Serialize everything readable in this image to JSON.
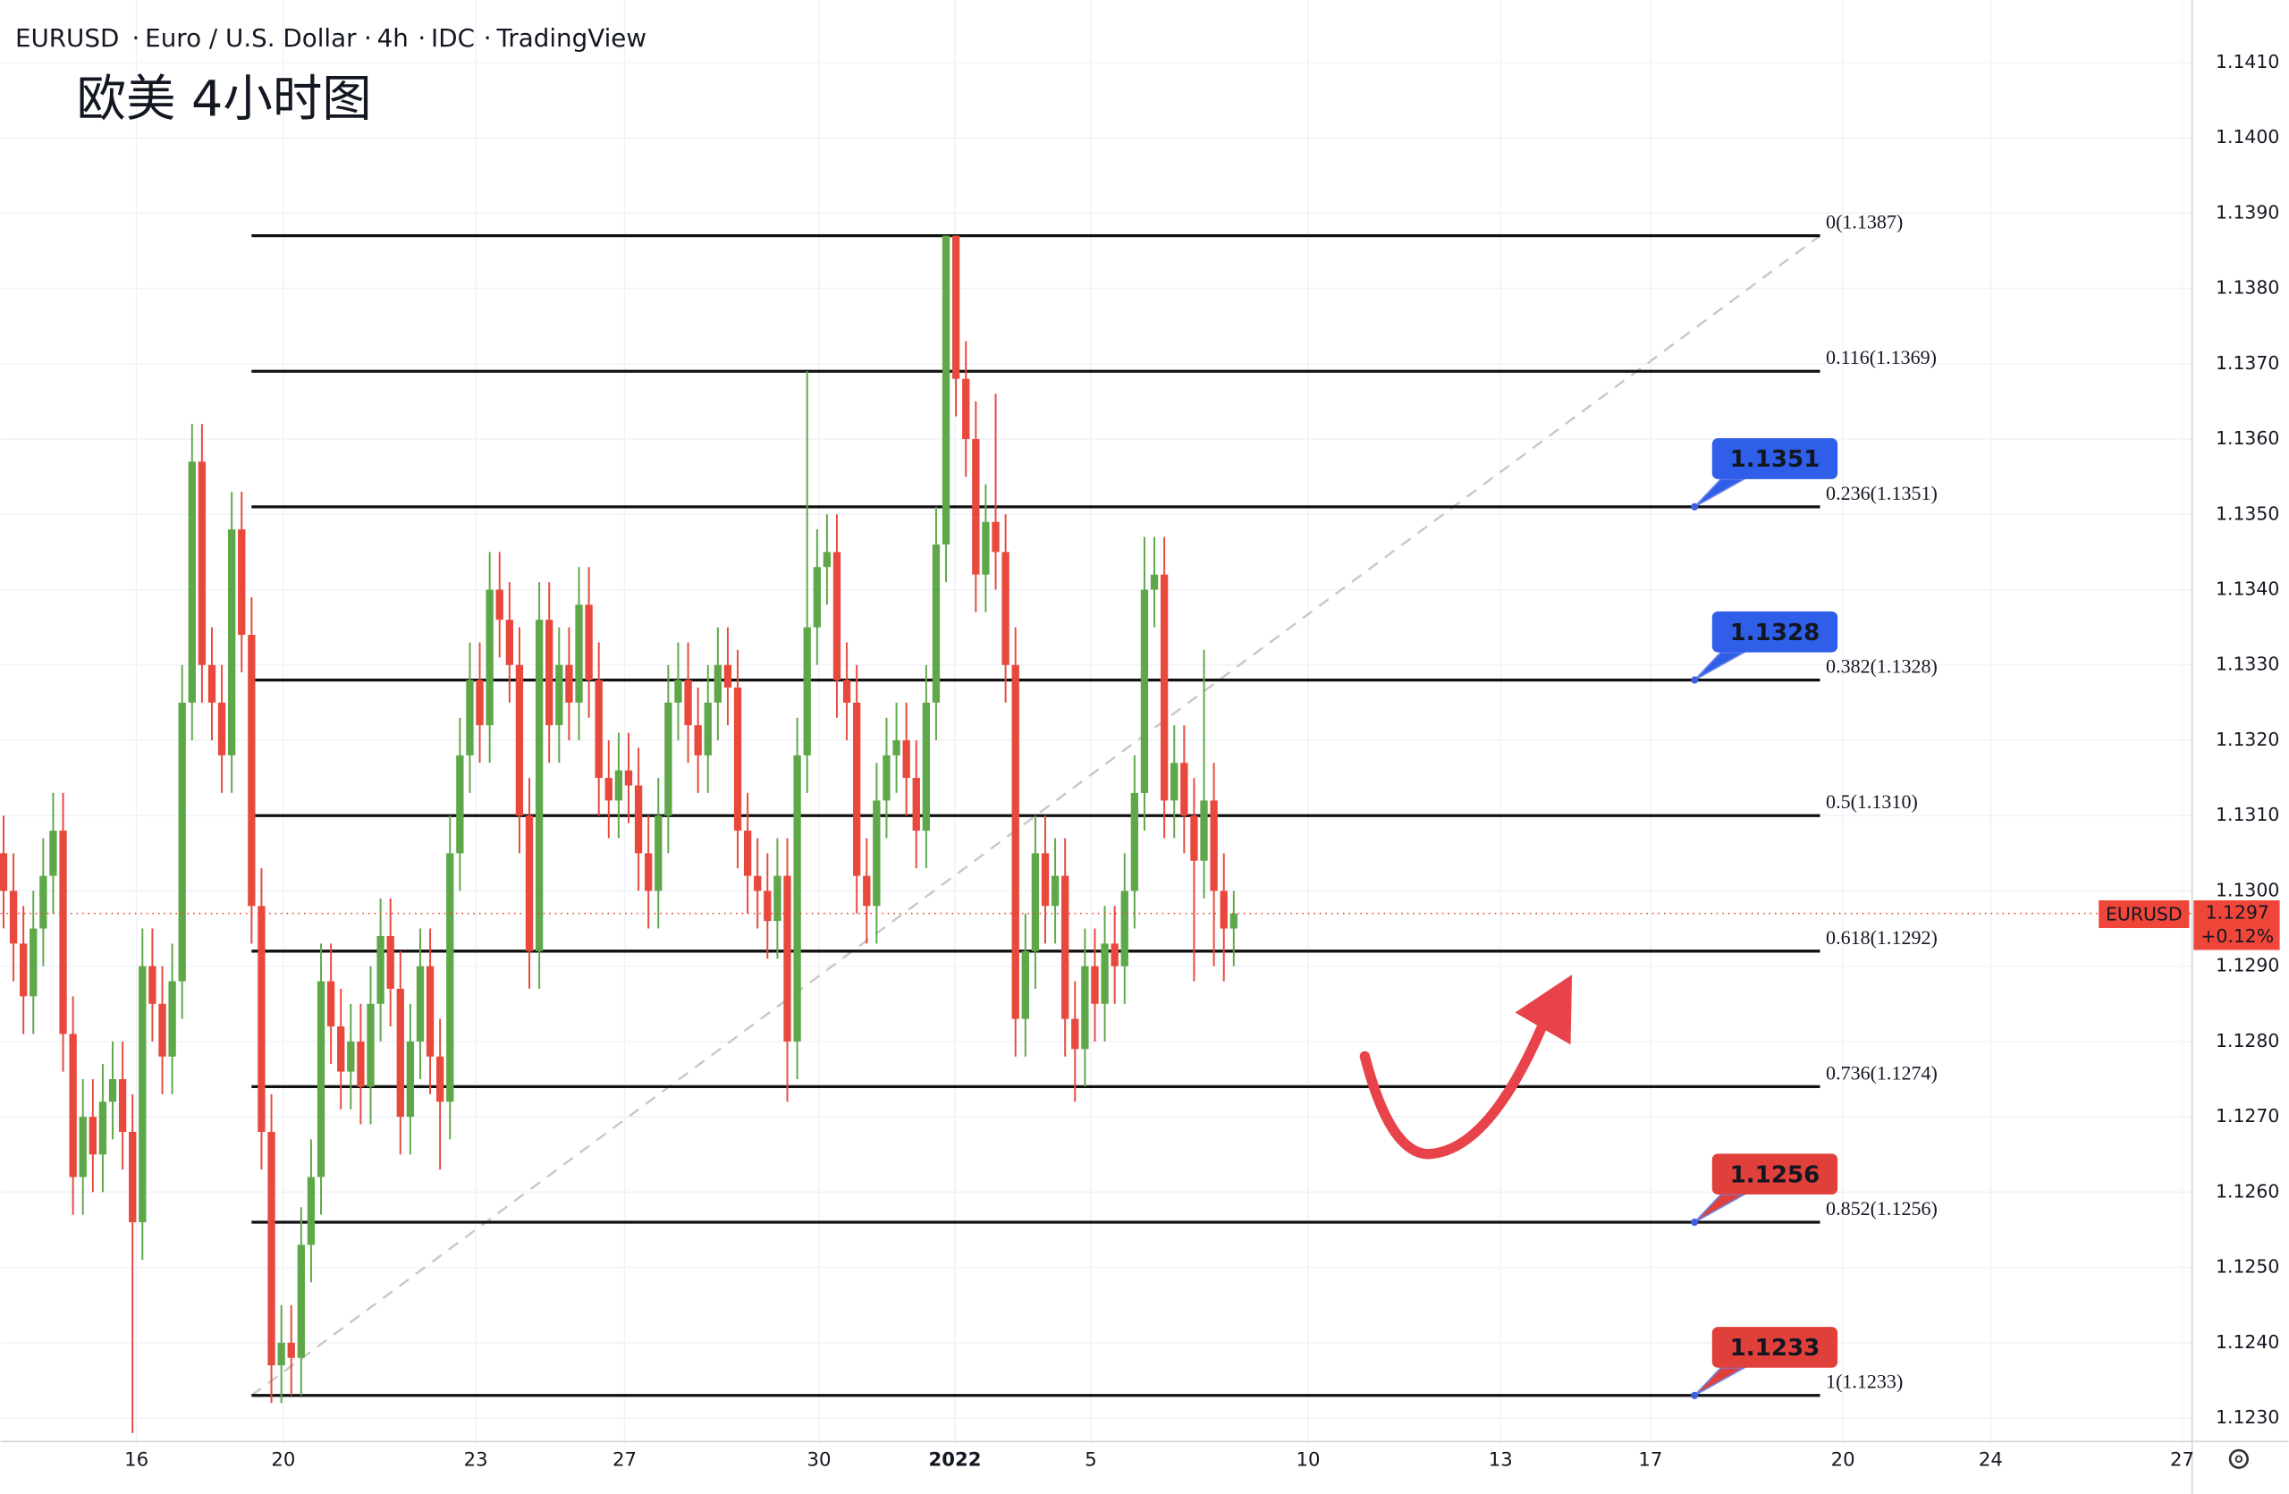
{
  "chart_data": {
    "type": "candlestick",
    "header": {
      "symbol": "EURUSD",
      "name": "Euro / U.S. Dollar",
      "interval": "4h",
      "source": "IDC",
      "platform": "TradingView"
    },
    "title": "欧美 4小时图",
    "up_color": "#5ea84a",
    "down_color": "#e8493c",
    "open": [
      1.1305,
      1.13,
      1.1293,
      1.1286,
      1.1295,
      1.1302,
      1.1308,
      1.1281,
      1.1262,
      1.127,
      1.1265,
      1.1272,
      1.1275,
      1.1268,
      1.1256,
      1.129,
      1.1285,
      1.1278,
      1.1288,
      1.1325,
      1.1357,
      1.133,
      1.1325,
      1.1318,
      1.1348,
      1.1334,
      1.1298,
      1.1268,
      1.1237,
      1.124,
      1.1238,
      1.1253,
      1.1262,
      1.1288,
      1.1282,
      1.1276,
      1.128,
      1.1274,
      1.1285,
      1.1294,
      1.1287,
      1.127,
      1.128,
      1.129,
      1.1278,
      1.1272,
      1.1305,
      1.1318,
      1.1328,
      1.1322,
      1.134,
      1.1336,
      1.133,
      1.131,
      1.1292,
      1.1336,
      1.1322,
      1.133,
      1.1325,
      1.1338,
      1.1328,
      1.1315,
      1.1312,
      1.1316,
      1.1314,
      1.1305,
      1.13,
      1.131,
      1.1325,
      1.1328,
      1.1322,
      1.1318,
      1.1325,
      1.133,
      1.1327,
      1.1308,
      1.1302,
      1.13,
      1.1296,
      1.1302,
      1.128,
      1.1318,
      1.1335,
      1.1343,
      1.1345,
      1.1328,
      1.1325,
      1.1302,
      1.1298,
      1.1312,
      1.1318,
      1.132,
      1.1315,
      1.1308,
      1.1325,
      1.1346,
      1.1387,
      1.1368,
      1.136,
      1.1342,
      1.1349,
      1.1345,
      1.133,
      1.1283,
      1.1292,
      1.1305,
      1.1298,
      1.1302,
      1.1283,
      1.1279,
      1.129,
      1.1285,
      1.1293,
      1.129,
      1.13,
      1.1313,
      1.134,
      1.1342,
      1.1312,
      1.1317,
      1.131,
      1.1304,
      1.1312,
      1.13,
      1.1295
    ],
    "high": [
      1.131,
      1.1305,
      1.1298,
      1.13,
      1.1307,
      1.1313,
      1.1313,
      1.1286,
      1.1275,
      1.1275,
      1.1277,
      1.128,
      1.128,
      1.1273,
      1.1295,
      1.1295,
      1.129,
      1.1293,
      1.133,
      1.1362,
      1.1362,
      1.1335,
      1.133,
      1.1353,
      1.1353,
      1.1339,
      1.1303,
      1.1273,
      1.1245,
      1.1245,
      1.1258,
      1.1267,
      1.1293,
      1.1293,
      1.1287,
      1.1285,
      1.1285,
      1.129,
      1.1299,
      1.1299,
      1.1292,
      1.1285,
      1.1295,
      1.1295,
      1.1283,
      1.131,
      1.1323,
      1.1333,
      1.1333,
      1.1345,
      1.1345,
      1.1341,
      1.1335,
      1.1315,
      1.1341,
      1.1341,
      1.1335,
      1.1335,
      1.1343,
      1.1343,
      1.1333,
      1.132,
      1.1321,
      1.1321,
      1.1319,
      1.131,
      1.1315,
      1.133,
      1.1333,
      1.1333,
      1.1327,
      1.133,
      1.1335,
      1.1335,
      1.1332,
      1.1313,
      1.1307,
      1.1305,
      1.1307,
      1.1307,
      1.1323,
      1.1369,
      1.1348,
      1.135,
      1.135,
      1.1333,
      1.133,
      1.1307,
      1.1317,
      1.1323,
      1.1325,
      1.1325,
      1.132,
      1.133,
      1.1351,
      1.1387,
      1.1387,
      1.1373,
      1.1365,
      1.1354,
      1.1366,
      1.135,
      1.1335,
      1.1297,
      1.131,
      1.131,
      1.1307,
      1.1307,
      1.1288,
      1.1295,
      1.1295,
      1.1298,
      1.1298,
      1.1305,
      1.1318,
      1.1347,
      1.1347,
      1.1347,
      1.1322,
      1.1322,
      1.1315,
      1.1332,
      1.1317,
      1.1305,
      1.13
    ],
    "low": [
      1.1295,
      1.1288,
      1.1281,
      1.1281,
      1.129,
      1.1297,
      1.1276,
      1.1257,
      1.1257,
      1.126,
      1.126,
      1.1267,
      1.1263,
      1.1228,
      1.1251,
      1.128,
      1.1273,
      1.1273,
      1.1283,
      1.132,
      1.1325,
      1.132,
      1.1313,
      1.1313,
      1.1329,
      1.1293,
      1.1263,
      1.1232,
      1.1232,
      1.1233,
      1.1233,
      1.1248,
      1.1257,
      1.1277,
      1.1271,
      1.1271,
      1.1269,
      1.1269,
      1.128,
      1.1282,
      1.1265,
      1.1265,
      1.1275,
      1.1273,
      1.1263,
      1.1267,
      1.13,
      1.1313,
      1.1317,
      1.1317,
      1.1331,
      1.1325,
      1.1305,
      1.1287,
      1.1287,
      1.1317,
      1.1317,
      1.132,
      1.132,
      1.1323,
      1.131,
      1.1307,
      1.1307,
      1.1309,
      1.13,
      1.1295,
      1.1295,
      1.1305,
      1.132,
      1.1317,
      1.1313,
      1.1313,
      1.132,
      1.1322,
      1.1303,
      1.1297,
      1.1295,
      1.1291,
      1.1291,
      1.1272,
      1.1275,
      1.1313,
      1.133,
      1.1338,
      1.1323,
      1.132,
      1.1297,
      1.1293,
      1.1293,
      1.1307,
      1.1313,
      1.131,
      1.1303,
      1.1303,
      1.132,
      1.1341,
      1.1363,
      1.1355,
      1.1337,
      1.1337,
      1.134,
      1.1325,
      1.1278,
      1.1278,
      1.1287,
      1.1293,
      1.1293,
      1.1278,
      1.1272,
      1.1274,
      1.128,
      1.128,
      1.1285,
      1.1285,
      1.1295,
      1.1308,
      1.1335,
      1.1307,
      1.1307,
      1.1305,
      1.1288,
      1.1299,
      1.129,
      1.1288,
      1.129
    ],
    "close": [
      1.13,
      1.1293,
      1.1286,
      1.1295,
      1.1302,
      1.1308,
      1.1281,
      1.1262,
      1.127,
      1.1265,
      1.1272,
      1.1275,
      1.1268,
      1.1256,
      1.129,
      1.1285,
      1.1278,
      1.1288,
      1.1325,
      1.1357,
      1.133,
      1.1325,
      1.1318,
      1.1348,
      1.1334,
      1.1298,
      1.1268,
      1.1237,
      1.124,
      1.1238,
      1.1253,
      1.1262,
      1.1288,
      1.1282,
      1.1276,
      1.128,
      1.1274,
      1.1285,
      1.1294,
      1.1287,
      1.127,
      1.128,
      1.129,
      1.1278,
      1.1272,
      1.1305,
      1.1318,
      1.1328,
      1.1322,
      1.134,
      1.1336,
      1.133,
      1.131,
      1.1292,
      1.1336,
      1.1322,
      1.133,
      1.1325,
      1.1338,
      1.1328,
      1.1315,
      1.1312,
      1.1316,
      1.1314,
      1.1305,
      1.13,
      1.131,
      1.1325,
      1.1328,
      1.1322,
      1.1318,
      1.1325,
      1.133,
      1.1327,
      1.1308,
      1.1302,
      1.13,
      1.1296,
      1.1302,
      1.128,
      1.1318,
      1.1335,
      1.1343,
      1.1345,
      1.1328,
      1.1325,
      1.1302,
      1.1298,
      1.1312,
      1.1318,
      1.132,
      1.1315,
      1.1308,
      1.1325,
      1.1346,
      1.1387,
      1.1368,
      1.136,
      1.1342,
      1.1349,
      1.1345,
      1.133,
      1.1283,
      1.1292,
      1.1305,
      1.1298,
      1.1302,
      1.1283,
      1.1279,
      1.129,
      1.1285,
      1.1293,
      1.129,
      1.13,
      1.1313,
      1.134,
      1.1342,
      1.1312,
      1.1317,
      1.131,
      1.1304,
      1.1312,
      1.13,
      1.1295,
      1.1297
    ],
    "xlim": [
      -0.3,
      220.6
    ],
    "xticks": [
      {
        "value": 13.4,
        "label": "16"
      },
      {
        "value": 28.2,
        "label": "20"
      },
      {
        "value": 47.6,
        "label": "23"
      },
      {
        "value": 62.6,
        "label": "27"
      },
      {
        "value": 82.2,
        "label": "30"
      },
      {
        "value": 95.9,
        "label": "2022"
      },
      {
        "value": 109.6,
        "label": "5"
      },
      {
        "value": 131.5,
        "label": "10"
      },
      {
        "value": 150.9,
        "label": "13"
      },
      {
        "value": 166,
        "label": "17"
      },
      {
        "value": 185.4,
        "label": "20"
      },
      {
        "value": 200.3,
        "label": "24"
      },
      {
        "value": 219.6,
        "label": "27"
      }
    ],
    "ylim": [
      1.12265,
      1.14183
    ],
    "yticks": [
      {
        "value": 1.123,
        "label": "1.1230"
      },
      {
        "value": 1.124,
        "label": "1.1240"
      },
      {
        "value": 1.125,
        "label": "1.1250"
      },
      {
        "value": 1.126,
        "label": "1.1260"
      },
      {
        "value": 1.127,
        "label": "1.1270"
      },
      {
        "value": 1.128,
        "label": "1.1280"
      },
      {
        "value": 1.129,
        "label": "1.1290"
      },
      {
        "value": 1.13,
        "label": "1.1300"
      },
      {
        "value": 1.131,
        "label": "1.1310"
      },
      {
        "value": 1.132,
        "label": "1.1320"
      },
      {
        "value": 1.133,
        "label": "1.1330"
      },
      {
        "value": 1.134,
        "label": "1.1340"
      },
      {
        "value": 1.135,
        "label": "1.1350"
      },
      {
        "value": 1.136,
        "label": "1.1360"
      },
      {
        "value": 1.137,
        "label": "1.1370"
      },
      {
        "value": 1.138,
        "label": "1.1380"
      },
      {
        "value": 1.139,
        "label": "1.1390"
      },
      {
        "value": 1.14,
        "label": "1.1400"
      },
      {
        "value": 1.141,
        "label": "1.1410"
      }
    ],
    "grid": true,
    "fib_levels": [
      {
        "value": 1.1387,
        "label": "0(1.1387)"
      },
      {
        "value": 1.1369,
        "label": "0.116(1.1369)"
      },
      {
        "value": 1.1351,
        "label": "0.236(1.1351)"
      },
      {
        "value": 1.1328,
        "label": "0.382(1.1328)"
      },
      {
        "value": 1.131,
        "label": "0.5(1.1310)"
      },
      {
        "value": 1.1292,
        "label": "0.618(1.1292)"
      },
      {
        "value": 1.1274,
        "label": "0.736(1.1274)"
      },
      {
        "value": 1.1256,
        "label": "0.852(1.1256)"
      },
      {
        "value": 1.1233,
        "label": "1(1.1233)"
      }
    ],
    "callouts": [
      {
        "value": 1.1351,
        "color": "#2f5fe8"
      },
      {
        "value": 1.1328,
        "color": "#2f5fe8"
      },
      {
        "value": 1.1256,
        "color": "#e0403a"
      },
      {
        "value": 1.1233,
        "color": "#e0403a"
      }
    ],
    "last_price": {
      "symbol": "EURUSD",
      "value": 1.1297,
      "change": "+0.12%",
      "color": "#f0463a"
    }
  }
}
